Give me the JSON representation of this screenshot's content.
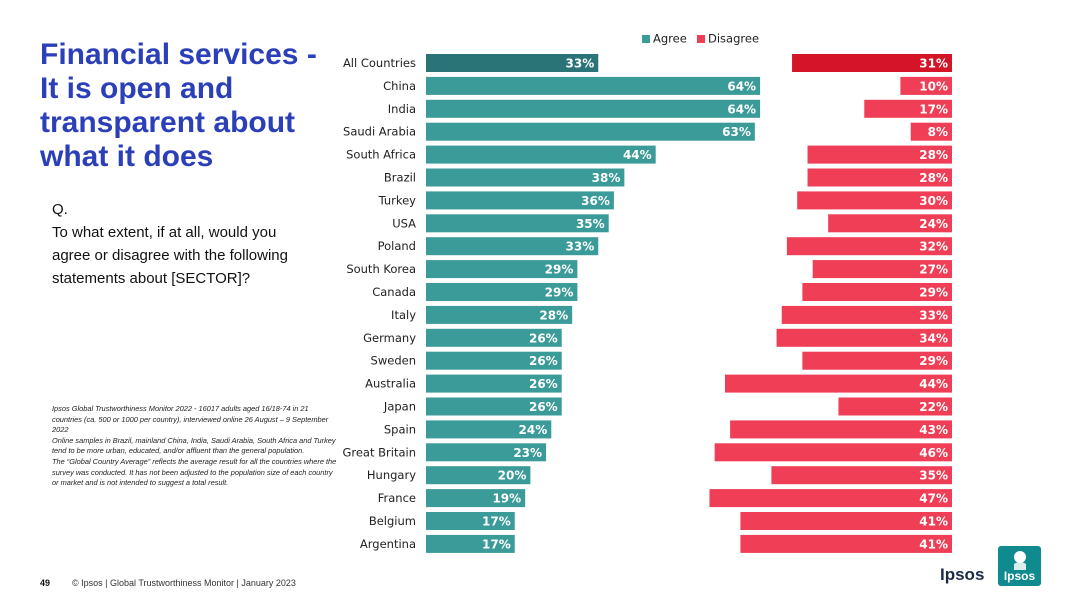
{
  "title": "Financial services - It is open and transparent about what it does",
  "question": {
    "q": "Q.",
    "text": "To what extent, if at all, would you agree or disagree with the following statements about [SECTOR]?"
  },
  "notes": {
    "line1": "Ipsos Global Trustworthiness Monitor 2022 - 16017 adults aged 16/18-74 in 21 countries (ca. 500 or 1000 per country), interviewed online 26 August – 9 September 2022",
    "line2": "Online samples in Brazil, mainland China, India, Saudi Arabia, South Africa and Turkey tend to be more urban, educated, and/or affluent than the general population.",
    "line3": "The “Global Country Average” reflects the average result for all the countries where the survey was conducted. It has not been adjusted to the population size of each country or market and is not intended to suggest a total result."
  },
  "footer": {
    "page_number": "49",
    "text": "© Ipsos | Global Trustworthiness Monitor | January 2023"
  },
  "logo": {
    "text": "Ipsos",
    "badge": "Ipsos"
  },
  "colors": {
    "agree": "#3b9b99",
    "agree_highlight": "#2a7478",
    "disagree": "#ef3e55",
    "disagree_highlight": "#d41427",
    "title": "#2b3fb8"
  },
  "chart_data": {
    "type": "bar",
    "orientation": "horizontal",
    "legend_position": "top",
    "categories": [
      "All Countries",
      "China",
      "India",
      "Saudi Arabia",
      "South Africa",
      "Brazil",
      "Turkey",
      "USA",
      "Poland",
      "South Korea",
      "Canada",
      "Italy",
      "Germany",
      "Sweden",
      "Australia",
      "Japan",
      "Spain",
      "Great Britain",
      "Hungary",
      "France",
      "Belgium",
      "Argentina"
    ],
    "series": [
      {
        "name": "Agree",
        "values": [
          33,
          64,
          64,
          63,
          44,
          38,
          36,
          35,
          33,
          29,
          29,
          28,
          26,
          26,
          26,
          26,
          24,
          23,
          20,
          19,
          17,
          17
        ]
      },
      {
        "name": "Disagree",
        "values": [
          31,
          10,
          17,
          8,
          28,
          28,
          30,
          24,
          32,
          27,
          29,
          33,
          34,
          29,
          44,
          22,
          43,
          46,
          35,
          47,
          41,
          41
        ]
      }
    ],
    "value_suffix": "%"
  }
}
